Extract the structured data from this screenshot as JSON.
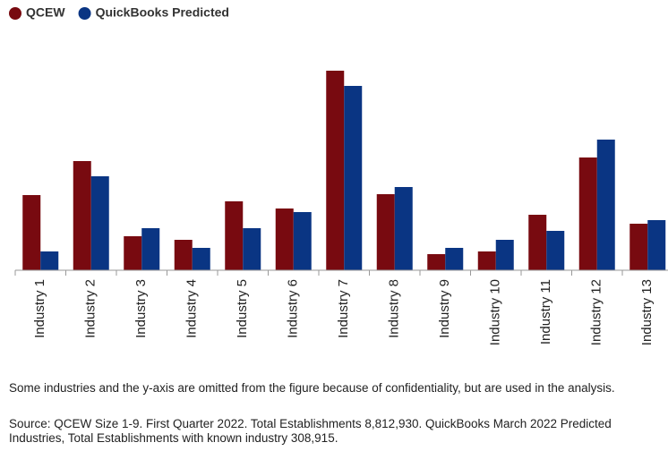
{
  "chart_data": {
    "type": "bar",
    "categories": [
      "Industry 1",
      "Industry 2",
      "Industry 3",
      "Industry 4",
      "Industry 5",
      "Industry 6",
      "Industry 7",
      "Industry 8",
      "Industry 9",
      "Industry 10",
      "Industry 11",
      "Industry 12",
      "Industry 13"
    ],
    "series": [
      {
        "name": "QCEW",
        "color": "#780a10",
        "values": [
          84,
          122,
          38,
          34,
          77,
          69,
          223,
          85,
          18,
          21,
          62,
          126,
          52
        ]
      },
      {
        "name": "QuickBooks Predicted",
        "color": "#0a3583",
        "values": [
          21,
          105,
          47,
          25,
          47,
          65,
          206,
          93,
          25,
          34,
          44,
          146,
          56
        ]
      }
    ],
    "ylim": [
      0,
      230
    ],
    "notes": [
      "Some industries and the y-axis are omitted from the figure because of confidentiality, but are used in the analysis.",
      "Source: QCEW Size 1-9. First Quarter 2022. Total Establishments 8,812,930. QuickBooks March 2022 Predicted Industries, Total Establishments with known industry 308,915."
    ]
  }
}
